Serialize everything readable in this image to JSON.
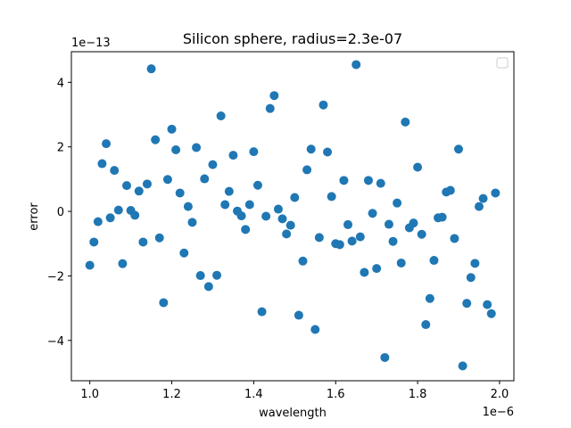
{
  "chart_data": {
    "type": "scatter",
    "title": "Silicon sphere, radius=2.3e-07",
    "xlabel": "wavelength",
    "ylabel": "error",
    "x_offset_label": "1e−6",
    "y_offset_label": "1e−13",
    "x_scale": 1e-06,
    "y_scale": 1e-13,
    "xlim": [
      0.955,
      2.035
    ],
    "ylim": [
      -5.25,
      4.95
    ],
    "x_ticks": [
      1.0,
      1.2,
      1.4,
      1.6,
      1.8,
      2.0
    ],
    "x_tick_labels": [
      "1.0",
      "1.2",
      "1.4",
      "1.6",
      "1.8",
      "2.0"
    ],
    "y_ticks": [
      -4,
      -2,
      0,
      2,
      4
    ],
    "y_tick_labels": [
      "−4",
      "−2",
      "0",
      "2",
      "4"
    ],
    "grid": false,
    "legend": {
      "placement": "top-right",
      "entries": []
    },
    "marker_color": "#1f77b4",
    "series": [
      {
        "x": [
          1.0,
          1.01,
          1.02,
          1.03,
          1.04,
          1.05,
          1.06,
          1.07,
          1.08,
          1.09,
          1.1,
          1.11,
          1.12,
          1.13,
          1.14,
          1.15,
          1.16,
          1.17,
          1.18,
          1.19,
          1.2,
          1.21,
          1.22,
          1.23,
          1.24,
          1.25,
          1.26,
          1.27,
          1.28,
          1.29,
          1.3,
          1.31,
          1.32,
          1.33,
          1.34,
          1.35,
          1.36,
          1.37,
          1.38,
          1.39,
          1.4,
          1.41,
          1.42,
          1.43,
          1.44,
          1.45,
          1.46,
          1.47,
          1.48,
          1.49,
          1.5,
          1.51,
          1.52,
          1.53,
          1.54,
          1.55,
          1.56,
          1.57,
          1.58,
          1.59,
          1.6,
          1.61,
          1.62,
          1.63,
          1.64,
          1.65,
          1.66,
          1.67,
          1.68,
          1.69,
          1.7,
          1.71,
          1.72,
          1.73,
          1.74,
          1.75,
          1.76,
          1.77,
          1.78,
          1.79,
          1.8,
          1.81,
          1.82,
          1.83,
          1.84,
          1.85,
          1.86,
          1.87,
          1.88,
          1.89,
          1.9,
          1.91,
          1.92,
          1.93,
          1.94,
          1.95,
          1.96,
          1.97,
          1.98,
          1.99
        ],
        "y": [
          -1.67,
          -0.95,
          -0.32,
          1.48,
          2.1,
          -0.2,
          1.27,
          0.04,
          -1.62,
          0.8,
          0.03,
          -0.12,
          0.63,
          -0.95,
          0.85,
          4.42,
          2.22,
          -0.82,
          -2.83,
          0.99,
          2.55,
          1.91,
          0.57,
          -1.29,
          0.15,
          -0.34,
          1.98,
          -1.99,
          1.01,
          -2.33,
          1.45,
          -1.98,
          2.96,
          0.21,
          0.62,
          1.74,
          0.01,
          -0.14,
          -0.56,
          0.21,
          1.85,
          0.81,
          -3.11,
          -0.15,
          3.19,
          3.59,
          0.07,
          -0.23,
          -0.7,
          -0.43,
          0.43,
          -3.22,
          -1.54,
          1.29,
          1.93,
          -3.66,
          -0.81,
          3.3,
          1.84,
          0.46,
          -1.0,
          -1.03,
          0.96,
          -0.41,
          -0.92,
          4.55,
          -0.79,
          -1.89,
          0.96,
          -0.06,
          -1.77,
          0.87,
          -4.53,
          -0.4,
          -0.93,
          0.26,
          -1.6,
          2.77,
          -0.51,
          -0.36,
          1.37,
          -0.71,
          -3.51,
          -2.7,
          -1.52,
          -0.2,
          -0.18,
          0.6,
          0.65,
          -0.84,
          1.93,
          -4.79,
          -2.85,
          -2.05,
          -1.61,
          0.15,
          0.4,
          -2.89,
          -3.17,
          0.57
        ]
      }
    ]
  }
}
